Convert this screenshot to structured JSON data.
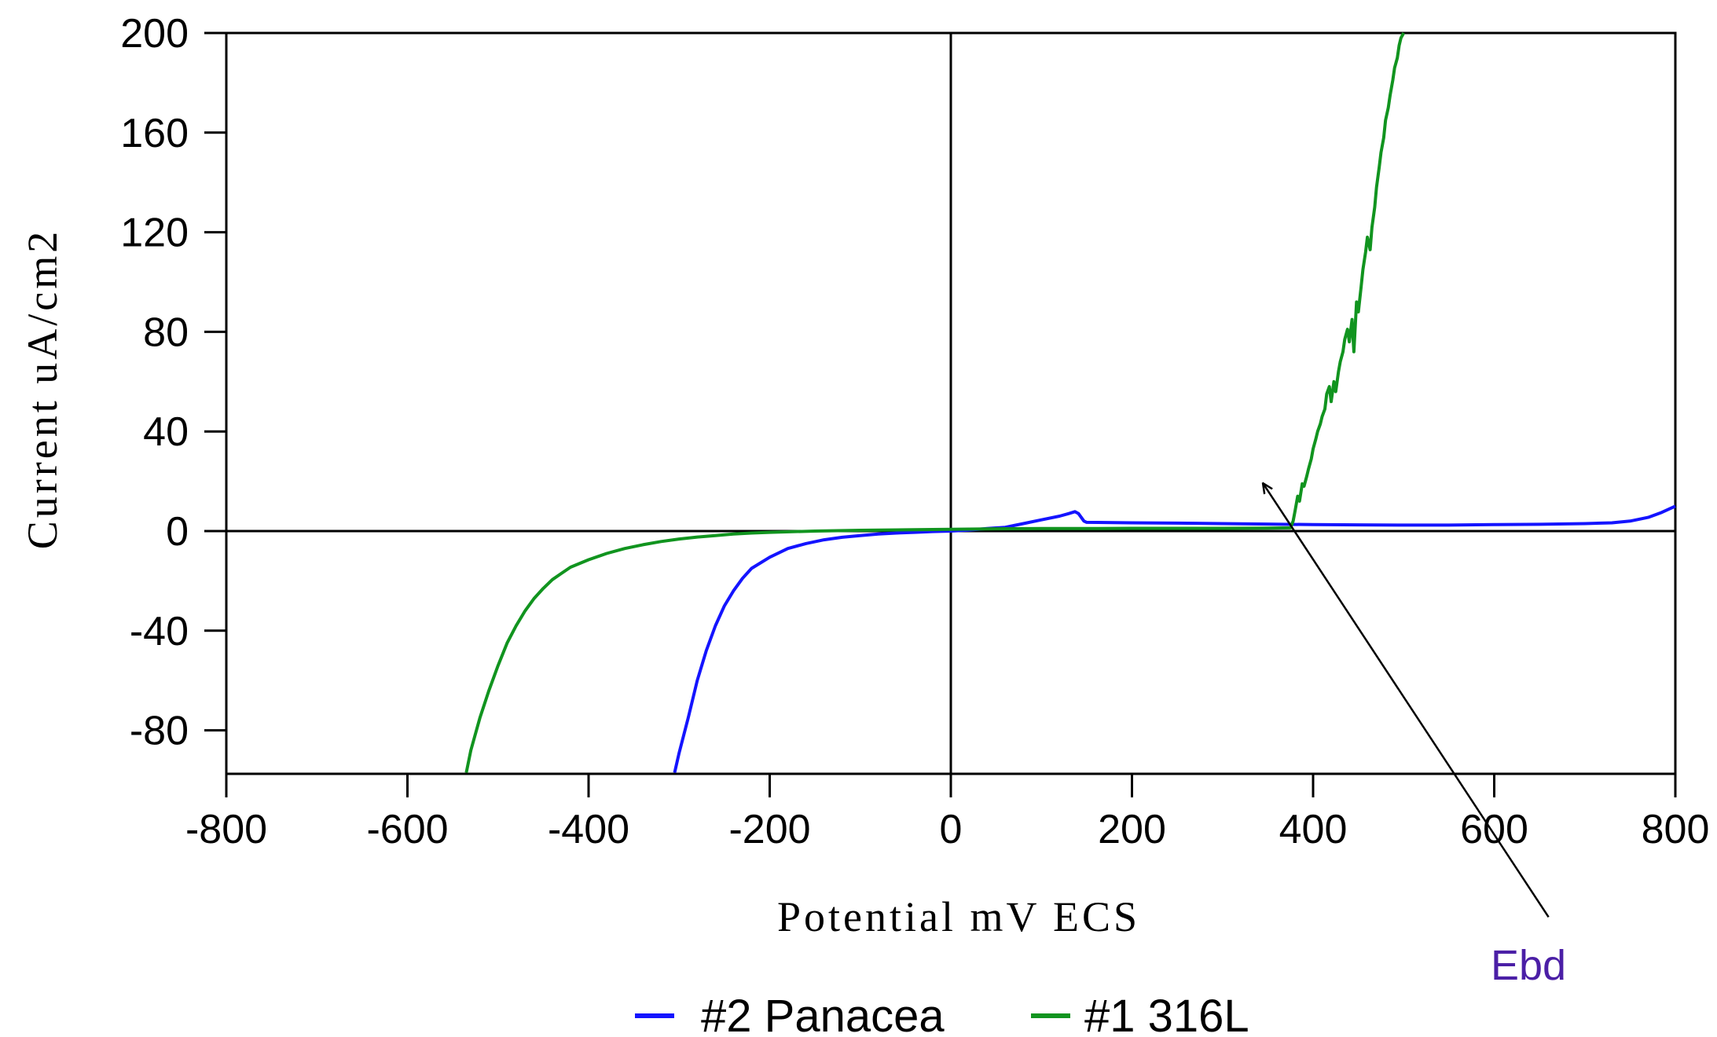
{
  "chart_data": {
    "type": "line",
    "title": "",
    "xlabel": "Potential mV ECS",
    "ylabel": "Current uA/cm2",
    "xlim": [
      -800,
      800
    ],
    "ylim": [
      -97,
      200
    ],
    "xticks": [
      -800,
      -600,
      -400,
      -200,
      0,
      200,
      400,
      600,
      800
    ],
    "yticks": [
      -80,
      -40,
      0,
      40,
      80,
      120,
      160,
      200
    ],
    "grid": false,
    "zero_lines": true,
    "legend_position": "bottom",
    "series": [
      {
        "name": "#2 Panacea",
        "color": "#1414ff",
        "x": [
          -305,
          -300,
          -290,
          -280,
          -270,
          -260,
          -250,
          -240,
          -230,
          -220,
          -200,
          -180,
          -160,
          -140,
          -120,
          -100,
          -80,
          -60,
          -40,
          -20,
          0,
          20,
          40,
          60,
          80,
          100,
          120,
          130,
          137,
          141,
          147,
          150,
          200,
          250,
          300,
          350,
          400,
          450,
          500,
          550,
          600,
          650,
          700,
          730,
          750,
          770,
          785,
          800
        ],
        "y": [
          -97,
          -89,
          -75,
          -60,
          -48,
          -38,
          -30,
          -24,
          -19,
          -15,
          -10.5,
          -7,
          -5,
          -3.5,
          -2.5,
          -1.8,
          -1.2,
          -0.8,
          -0.5,
          -0.2,
          0,
          0.4,
          1,
          1.5,
          3,
          4.5,
          6,
          7,
          7.8,
          7,
          4,
          3.5,
          3.3,
          3.2,
          3,
          2.8,
          2.6,
          2.5,
          2.4,
          2.4,
          2.6,
          2.7,
          3,
          3.3,
          4,
          5.5,
          7.5,
          10
        ]
      },
      {
        "name": "#1 316L",
        "color": "#11941f",
        "x": [
          -535,
          -530,
          -520,
          -510,
          -500,
          -490,
          -480,
          -470,
          -460,
          -450,
          -440,
          -430,
          -420,
          -400,
          -380,
          -360,
          -340,
          -320,
          -300,
          -280,
          -260,
          -240,
          -220,
          -200,
          -150,
          -100,
          -50,
          0,
          50,
          100,
          150,
          200,
          250,
          300,
          350,
          375,
          378,
          380,
          383,
          385,
          388,
          390,
          393,
          395,
          398,
          400,
          403,
          405,
          408,
          410,
          413,
          415,
          418,
          420,
          423,
          425,
          428,
          430,
          433,
          435,
          438,
          440,
          443,
          445,
          448,
          450,
          453,
          455,
          458,
          460,
          463,
          465,
          468,
          470,
          473,
          475,
          478,
          480,
          483,
          485,
          488,
          490,
          493,
          495,
          497,
          500
        ],
        "y": [
          -97,
          -88,
          -75,
          -64,
          -54,
          -45,
          -38,
          -32,
          -27,
          -23,
          -19.5,
          -17,
          -14.5,
          -11.5,
          -9,
          -7,
          -5.5,
          -4.2,
          -3.2,
          -2.4,
          -1.8,
          -1.2,
          -0.8,
          -0.5,
          0,
          0.3,
          0.5,
          0.7,
          0.9,
          1,
          1,
          1.1,
          1.1,
          1.1,
          1.2,
          1.3,
          4,
          8,
          14,
          12,
          19,
          18,
          22,
          25,
          29,
          33,
          37,
          40,
          43,
          46,
          49,
          55,
          58,
          52,
          60,
          56,
          64,
          68,
          72,
          77,
          81,
          76,
          85,
          72,
          92,
          88,
          98,
          105,
          112,
          118,
          113,
          122,
          130,
          138,
          146,
          152,
          158,
          165,
          170,
          175,
          181,
          186,
          190,
          195,
          198,
          200
        ]
      }
    ],
    "annotations": [
      {
        "text": "Ebd",
        "color": "#4b1fa6",
        "arrow_from": [
          660,
          -155
        ],
        "arrow_to": [
          345,
          19
        ]
      }
    ]
  }
}
